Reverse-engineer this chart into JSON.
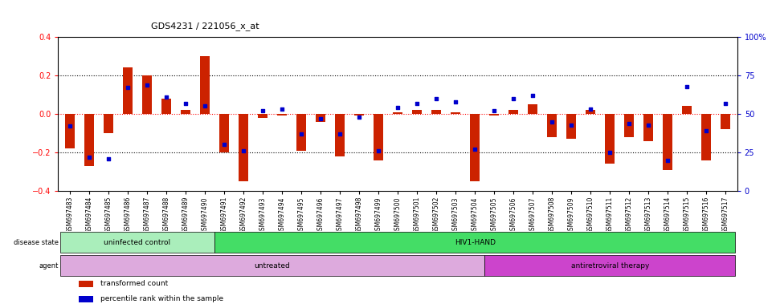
{
  "title": "GDS4231 / 221056_x_at",
  "samples": [
    "GSM697483",
    "GSM697484",
    "GSM697485",
    "GSM697486",
    "GSM697487",
    "GSM697488",
    "GSM697489",
    "GSM697490",
    "GSM697491",
    "GSM697492",
    "GSM697493",
    "GSM697494",
    "GSM697495",
    "GSM697496",
    "GSM697497",
    "GSM697498",
    "GSM697499",
    "GSM697500",
    "GSM697501",
    "GSM697502",
    "GSM697503",
    "GSM697504",
    "GSM697505",
    "GSM697506",
    "GSM697507",
    "GSM697508",
    "GSM697509",
    "GSM697510",
    "GSM697511",
    "GSM697512",
    "GSM697513",
    "GSM697514",
    "GSM697515",
    "GSM697516",
    "GSM697517"
  ],
  "bar_values": [
    -0.18,
    -0.27,
    -0.1,
    0.24,
    0.2,
    0.08,
    0.02,
    0.3,
    -0.2,
    -0.35,
    -0.02,
    -0.01,
    -0.19,
    -0.04,
    -0.22,
    -0.01,
    -0.24,
    0.01,
    0.02,
    0.02,
    0.01,
    -0.35,
    -0.01,
    0.02,
    0.05,
    -0.12,
    -0.13,
    0.02,
    -0.26,
    -0.12,
    -0.14,
    -0.29,
    0.04,
    -0.24,
    -0.08
  ],
  "dot_values": [
    42,
    22,
    21,
    67,
    69,
    61,
    57,
    55,
    30,
    26,
    52,
    53,
    37,
    47,
    37,
    48,
    26,
    54,
    57,
    60,
    58,
    27,
    52,
    60,
    62,
    45,
    43,
    53,
    25,
    44,
    43,
    20,
    68,
    39,
    57
  ],
  "bar_color": "#cc2200",
  "dot_color": "#0000cc",
  "ylim_left": [
    -0.4,
    0.4
  ],
  "ylim_right": [
    0,
    100
  ],
  "yticks_left": [
    -0.4,
    -0.2,
    0.0,
    0.2,
    0.4
  ],
  "yticks_right": [
    0,
    25,
    50,
    75,
    100
  ],
  "ytick_labels_right": [
    "0",
    "25",
    "50",
    "75",
    "100%"
  ],
  "hlines": [
    -0.2,
    0.0,
    0.2
  ],
  "hline_colors": [
    "black",
    "red",
    "black"
  ],
  "hline_styles": [
    "dotted",
    "dotted",
    "dotted"
  ],
  "disease_state_groups": [
    {
      "label": "uninfected control",
      "start": 0,
      "end": 8,
      "color": "#aaeebb"
    },
    {
      "label": "HIV1-HAND",
      "start": 8,
      "end": 35,
      "color": "#44dd66"
    }
  ],
  "agent_groups": [
    {
      "label": "untreated",
      "start": 0,
      "end": 22,
      "color": "#ddaadd"
    },
    {
      "label": "antiretroviral therapy",
      "start": 22,
      "end": 35,
      "color": "#cc44cc"
    }
  ],
  "legend_items": [
    {
      "color": "#cc2200",
      "label": "transformed count"
    },
    {
      "color": "#0000cc",
      "label": "percentile rank within the sample"
    }
  ],
  "bg_color": "#ffffff",
  "plot_bg_color": "#ffffff"
}
